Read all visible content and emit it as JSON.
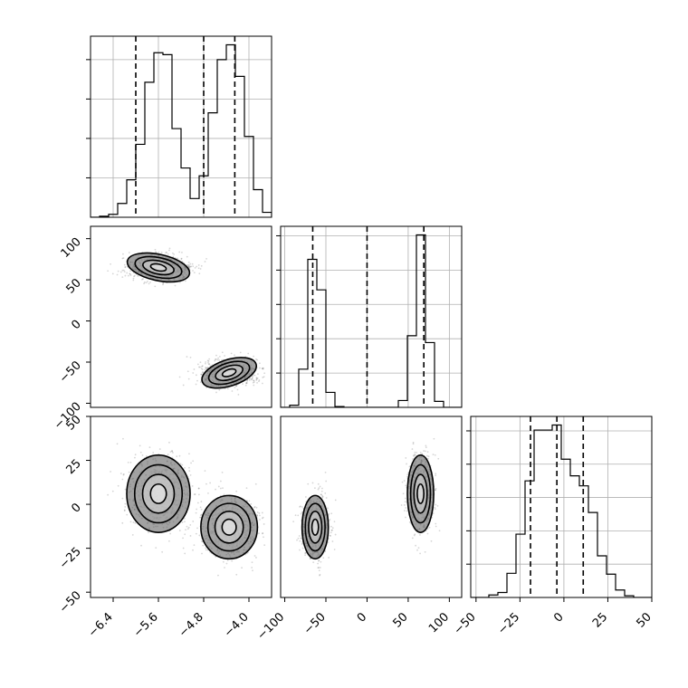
{
  "chart_data": {
    "type": "corner",
    "parameters": [
      {
        "range": [
          -6.8,
          -3.6
        ],
        "ticks": [
          -6.4,
          -5.6,
          -4.8,
          -4.0
        ],
        "tick_labels": [
          "−6.4",
          "−5.6",
          "−4.8",
          "−4.0"
        ],
        "quantiles": [
          -6.0,
          -4.8,
          -4.25
        ],
        "modes": [
          {
            "mean": -5.6,
            "sd": 0.28,
            "weight": 0.5
          },
          {
            "mean": -4.35,
            "sd": 0.25,
            "weight": 0.5
          }
        ]
      },
      {
        "range": [
          -105,
          115
        ],
        "ticks": [
          -100,
          -50,
          0,
          50,
          100
        ],
        "tick_labels": [
          "−100",
          "−50",
          "0",
          "50",
          "100"
        ],
        "quantiles": [
          -66,
          0,
          69
        ],
        "modes": [
          {
            "mean": 65,
            "sd": 8,
            "weight": 0.5
          },
          {
            "mean": -63,
            "sd": 8,
            "weight": 0.5
          }
        ]
      },
      {
        "range": [
          -53,
          50
        ],
        "ticks": [
          -50,
          -25,
          0,
          25,
          50
        ],
        "tick_labels": [
          "−50",
          "−25",
          "0",
          "25",
          "50"
        ],
        "quantiles": [
          -19,
          -4,
          11
        ],
        "modes": [
          {
            "mean": 6,
            "sd": 11,
            "weight": 0.5
          },
          {
            "mean": -13,
            "sd": 9,
            "weight": 0.5
          }
        ]
      }
    ],
    "grid": true,
    "histogram_bins": 20,
    "contour_levels": [
      0.5,
      1.0,
      1.5,
      2.0
    ]
  }
}
